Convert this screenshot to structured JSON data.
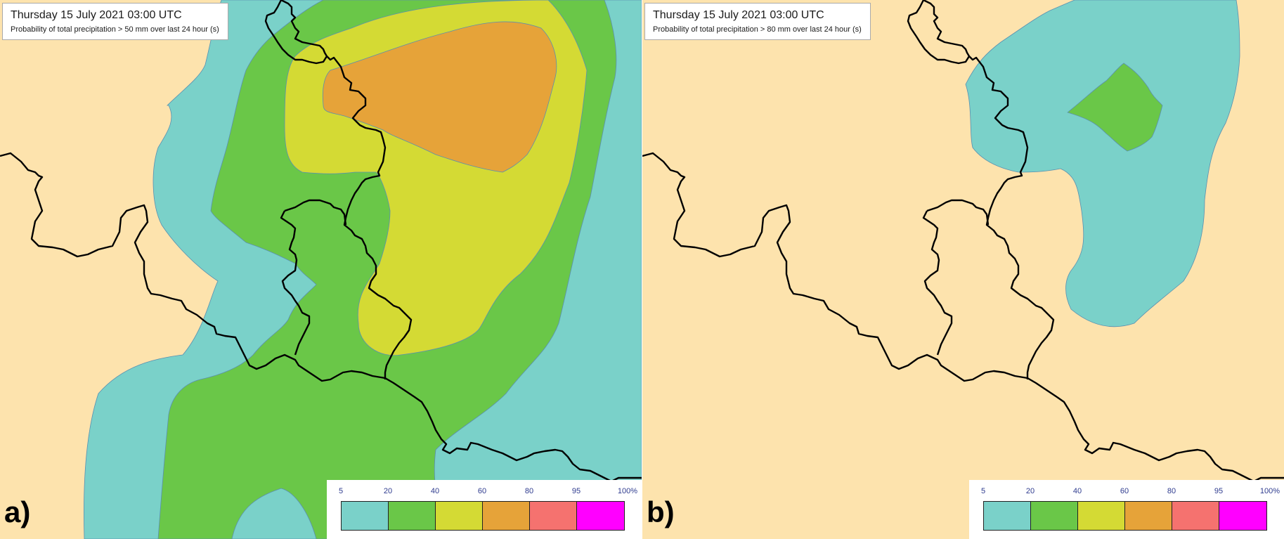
{
  "colors": {
    "land": "#fde3ad",
    "p5_20": "#7ad1c9",
    "p20_40": "#6ac748",
    "p40_60": "#d4da34",
    "p60_80": "#e6a339",
    "p80_95": "#f5726f",
    "p95_100": "#ff00ff",
    "border": "#000000"
  },
  "panels": [
    {
      "letter": "a)",
      "title": "Thursday 15 July 2021 03:00 UTC",
      "subtitle": "Probability of total precipitation > 50 mm over last 24 hour (s)"
    },
    {
      "letter": "b)",
      "title": "Thursday 15 July 2021 03:00 UTC",
      "subtitle": "Probability of total precipitation > 80 mm over last 24 hour (s)"
    }
  ],
  "legend": {
    "ticks": [
      "5",
      "20",
      "40",
      "60",
      "80",
      "95",
      "100%"
    ],
    "swatch_colors": [
      "#7ad1c9",
      "#6ac748",
      "#d4da34",
      "#e6a339",
      "#f5726f",
      "#ff00ff"
    ]
  }
}
